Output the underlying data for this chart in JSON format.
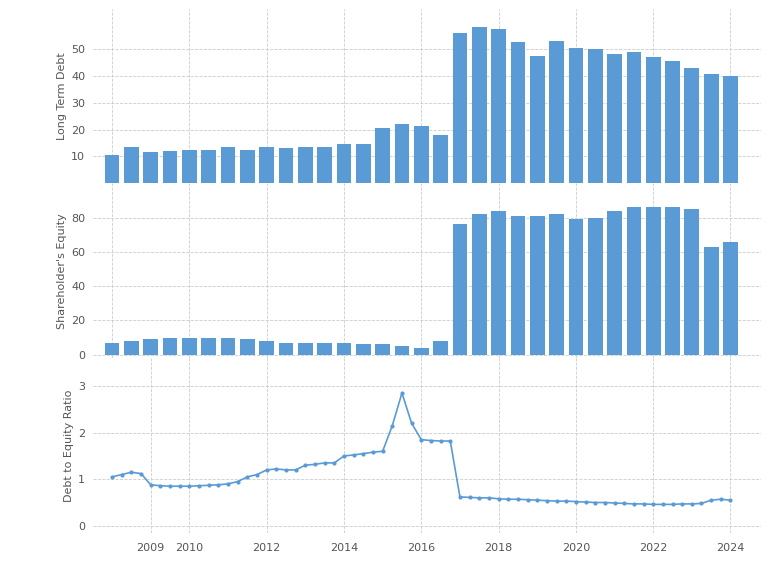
{
  "bar_color": "#5b9bd5",
  "line_color": "#5b9bd5",
  "bg_color": "#ffffff",
  "grid_color": "#cccccc",
  "text_color": "#555555",
  "ylabel1": "Long Term Debt",
  "ylabel2": "Shareholder's Equity",
  "ylabel3": "Debt to Equity Ratio",
  "lt_x": [
    2008.0,
    2008.5,
    2009.0,
    2009.5,
    2010.0,
    2010.5,
    2011.0,
    2011.5,
    2012.0,
    2012.5,
    2013.0,
    2013.5,
    2014.0,
    2014.5,
    2015.0,
    2015.5,
    2016.0,
    2016.5,
    2017.0,
    2017.5,
    2018.0,
    2018.5,
    2019.0,
    2019.5,
    2020.0,
    2020.5,
    2021.0,
    2021.5,
    2022.0,
    2022.5,
    2023.0,
    2023.5,
    2024.0
  ],
  "lt_v": [
    10.5,
    13.5,
    11.5,
    12.0,
    12.5,
    12.5,
    13.5,
    12.5,
    13.5,
    13.0,
    13.5,
    13.5,
    14.5,
    14.5,
    20.5,
    22.0,
    21.5,
    18.0,
    56.0,
    58.0,
    57.5,
    52.5,
    47.5,
    53.0,
    50.5,
    50.0,
    48.0,
    49.0,
    47.0,
    45.5,
    43.0,
    40.5,
    40.0
  ],
  "se_x": [
    2008.0,
    2008.5,
    2009.0,
    2009.5,
    2010.0,
    2010.5,
    2011.0,
    2011.5,
    2012.0,
    2012.5,
    2013.0,
    2013.5,
    2014.0,
    2014.5,
    2015.0,
    2015.5,
    2016.0,
    2016.5,
    2017.0,
    2017.5,
    2018.0,
    2018.5,
    2019.0,
    2019.5,
    2020.0,
    2020.5,
    2021.0,
    2021.5,
    2022.0,
    2022.5,
    2023.0,
    2023.5,
    2024.0
  ],
  "se_v": [
    7,
    8,
    9,
    10,
    10,
    10,
    10,
    9,
    8,
    7,
    7,
    7,
    7,
    6,
    6,
    5,
    4,
    8,
    76,
    82,
    84,
    81,
    81,
    82,
    79,
    80,
    84,
    86,
    86,
    86,
    85,
    63,
    66
  ],
  "de_x": [
    2008.0,
    2008.25,
    2008.5,
    2008.75,
    2009.0,
    2009.25,
    2009.5,
    2009.75,
    2010.0,
    2010.25,
    2010.5,
    2010.75,
    2011.0,
    2011.25,
    2011.5,
    2011.75,
    2012.0,
    2012.25,
    2012.5,
    2012.75,
    2013.0,
    2013.25,
    2013.5,
    2013.75,
    2014.0,
    2014.25,
    2014.5,
    2014.75,
    2015.0,
    2015.25,
    2015.5,
    2015.75,
    2016.0,
    2016.25,
    2016.5,
    2016.75,
    2017.0,
    2017.25,
    2017.5,
    2017.75,
    2018.0,
    2018.25,
    2018.5,
    2018.75,
    2019.0,
    2019.25,
    2019.5,
    2019.75,
    2020.0,
    2020.25,
    2020.5,
    2020.75,
    2021.0,
    2021.25,
    2021.5,
    2021.75,
    2022.0,
    2022.25,
    2022.5,
    2022.75,
    2023.0,
    2023.25,
    2023.5,
    2023.75,
    2024.0
  ],
  "de_y": [
    1.05,
    1.1,
    1.15,
    1.12,
    0.88,
    0.86,
    0.85,
    0.85,
    0.85,
    0.86,
    0.87,
    0.88,
    0.9,
    0.95,
    1.05,
    1.1,
    1.2,
    1.22,
    1.2,
    1.2,
    1.3,
    1.32,
    1.35,
    1.35,
    1.5,
    1.52,
    1.55,
    1.58,
    1.6,
    2.15,
    2.85,
    2.2,
    1.85,
    1.83,
    1.82,
    1.82,
    0.62,
    0.61,
    0.6,
    0.6,
    0.58,
    0.57,
    0.57,
    0.56,
    0.55,
    0.54,
    0.53,
    0.53,
    0.52,
    0.51,
    0.5,
    0.5,
    0.49,
    0.48,
    0.47,
    0.47,
    0.46,
    0.46,
    0.46,
    0.47,
    0.47,
    0.48,
    0.55,
    0.57,
    0.55
  ],
  "xlim": [
    2007.5,
    2024.8
  ],
  "lt_ylim": [
    0,
    65
  ],
  "lt_yticks": [
    10,
    20,
    30,
    40,
    50
  ],
  "se_ylim": [
    -2,
    100
  ],
  "se_yticks": [
    0,
    20,
    40,
    60,
    80
  ],
  "de_ylim": [
    -0.15,
    3.6
  ],
  "de_yticks": [
    0,
    1,
    2,
    3
  ],
  "xticks": [
    2009,
    2010,
    2012,
    2014,
    2016,
    2018,
    2020,
    2022,
    2024
  ],
  "bar_width": 0.38
}
